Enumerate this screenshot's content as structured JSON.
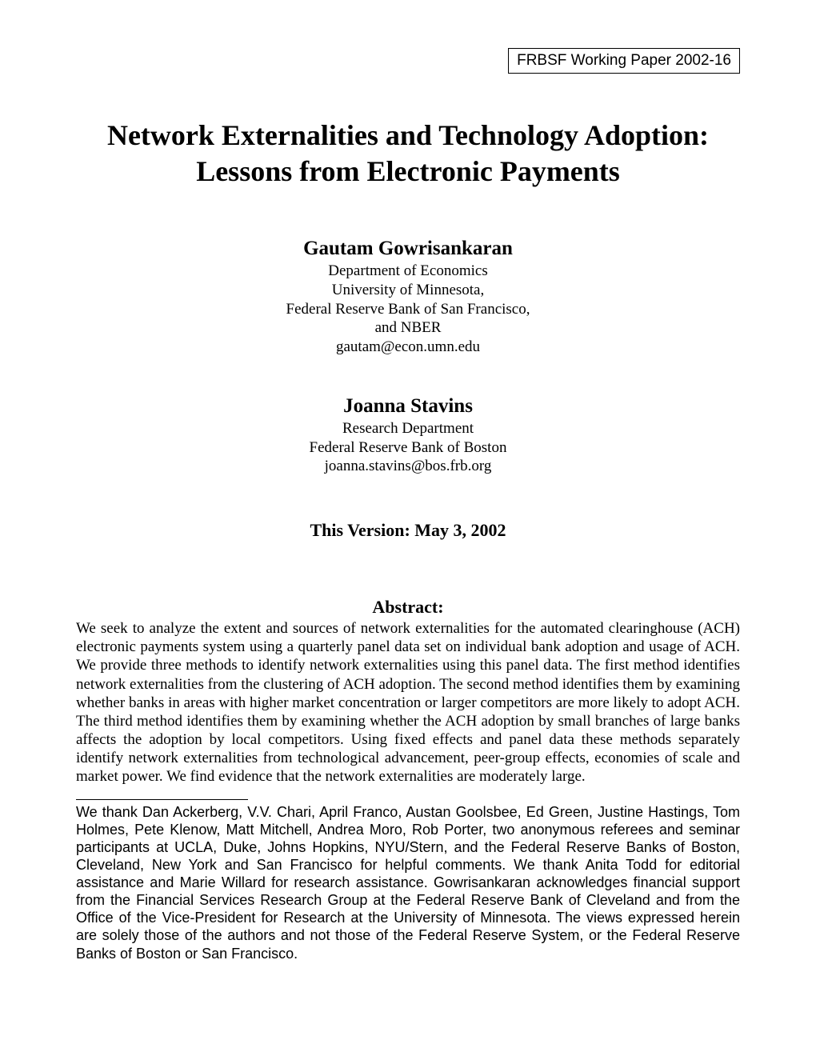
{
  "paper_id": "FRBSF Working Paper 2002-16",
  "title_line1": "Network Externalities and Technology Adoption:",
  "title_line2": "Lessons from Electronic Payments",
  "authors": [
    {
      "name": "Gautam Gowrisankaran",
      "lines": [
        "Department of Economics",
        "University of Minnesota,",
        "Federal Reserve Bank of San Francisco,",
        "and NBER",
        "gautam@econ.umn.edu"
      ]
    },
    {
      "name": "Joanna Stavins",
      "lines": [
        "Research Department",
        "Federal Reserve Bank of Boston",
        "joanna.stavins@bos.frb.org"
      ]
    }
  ],
  "version": "This Version: May 3, 2002",
  "abstract_heading": "Abstract:",
  "abstract_body": "We seek to analyze the extent and sources of network externalities for the automated clearinghouse (ACH) electronic payments system using a quarterly panel data set on individual bank adoption and usage of ACH. We provide three methods to identify network externalities using this panel data. The first method identifies network externalities from the clustering of ACH adoption. The second method identifies them by examining whether banks in areas with higher market concentration or larger competitors are more likely to adopt ACH. The third method identifies them by examining whether the ACH adoption by small branches of large banks affects the adoption by local competitors. Using fixed effects and panel data these methods separately identify network externalities from technological advancement, peer-group effects, economies of scale and market power. We find evidence that the network externalities are moderately large.",
  "footnote": "We thank Dan Ackerberg, V.V. Chari, April Franco, Austan Goolsbee, Ed Green, Justine Hastings, Tom Holmes, Pete Klenow, Matt Mitchell, Andrea Moro, Rob Porter, two anonymous referees and seminar participants at UCLA, Duke, Johns Hopkins, NYU/Stern, and the Federal Reserve Banks of Boston, Cleveland, New York and San Francisco for helpful comments. We thank Anita Todd for editorial assistance and Marie Willard for research assistance. Gowrisankaran acknowledges financial support from the Financial Services Research Group at the Federal Reserve Bank of Cleveland and from the Office of the Vice-President for Research at the University of Minnesota. The views expressed herein are solely those of the authors and not those of the Federal Reserve System, or the Federal Reserve Banks of Boston or San Francisco."
}
